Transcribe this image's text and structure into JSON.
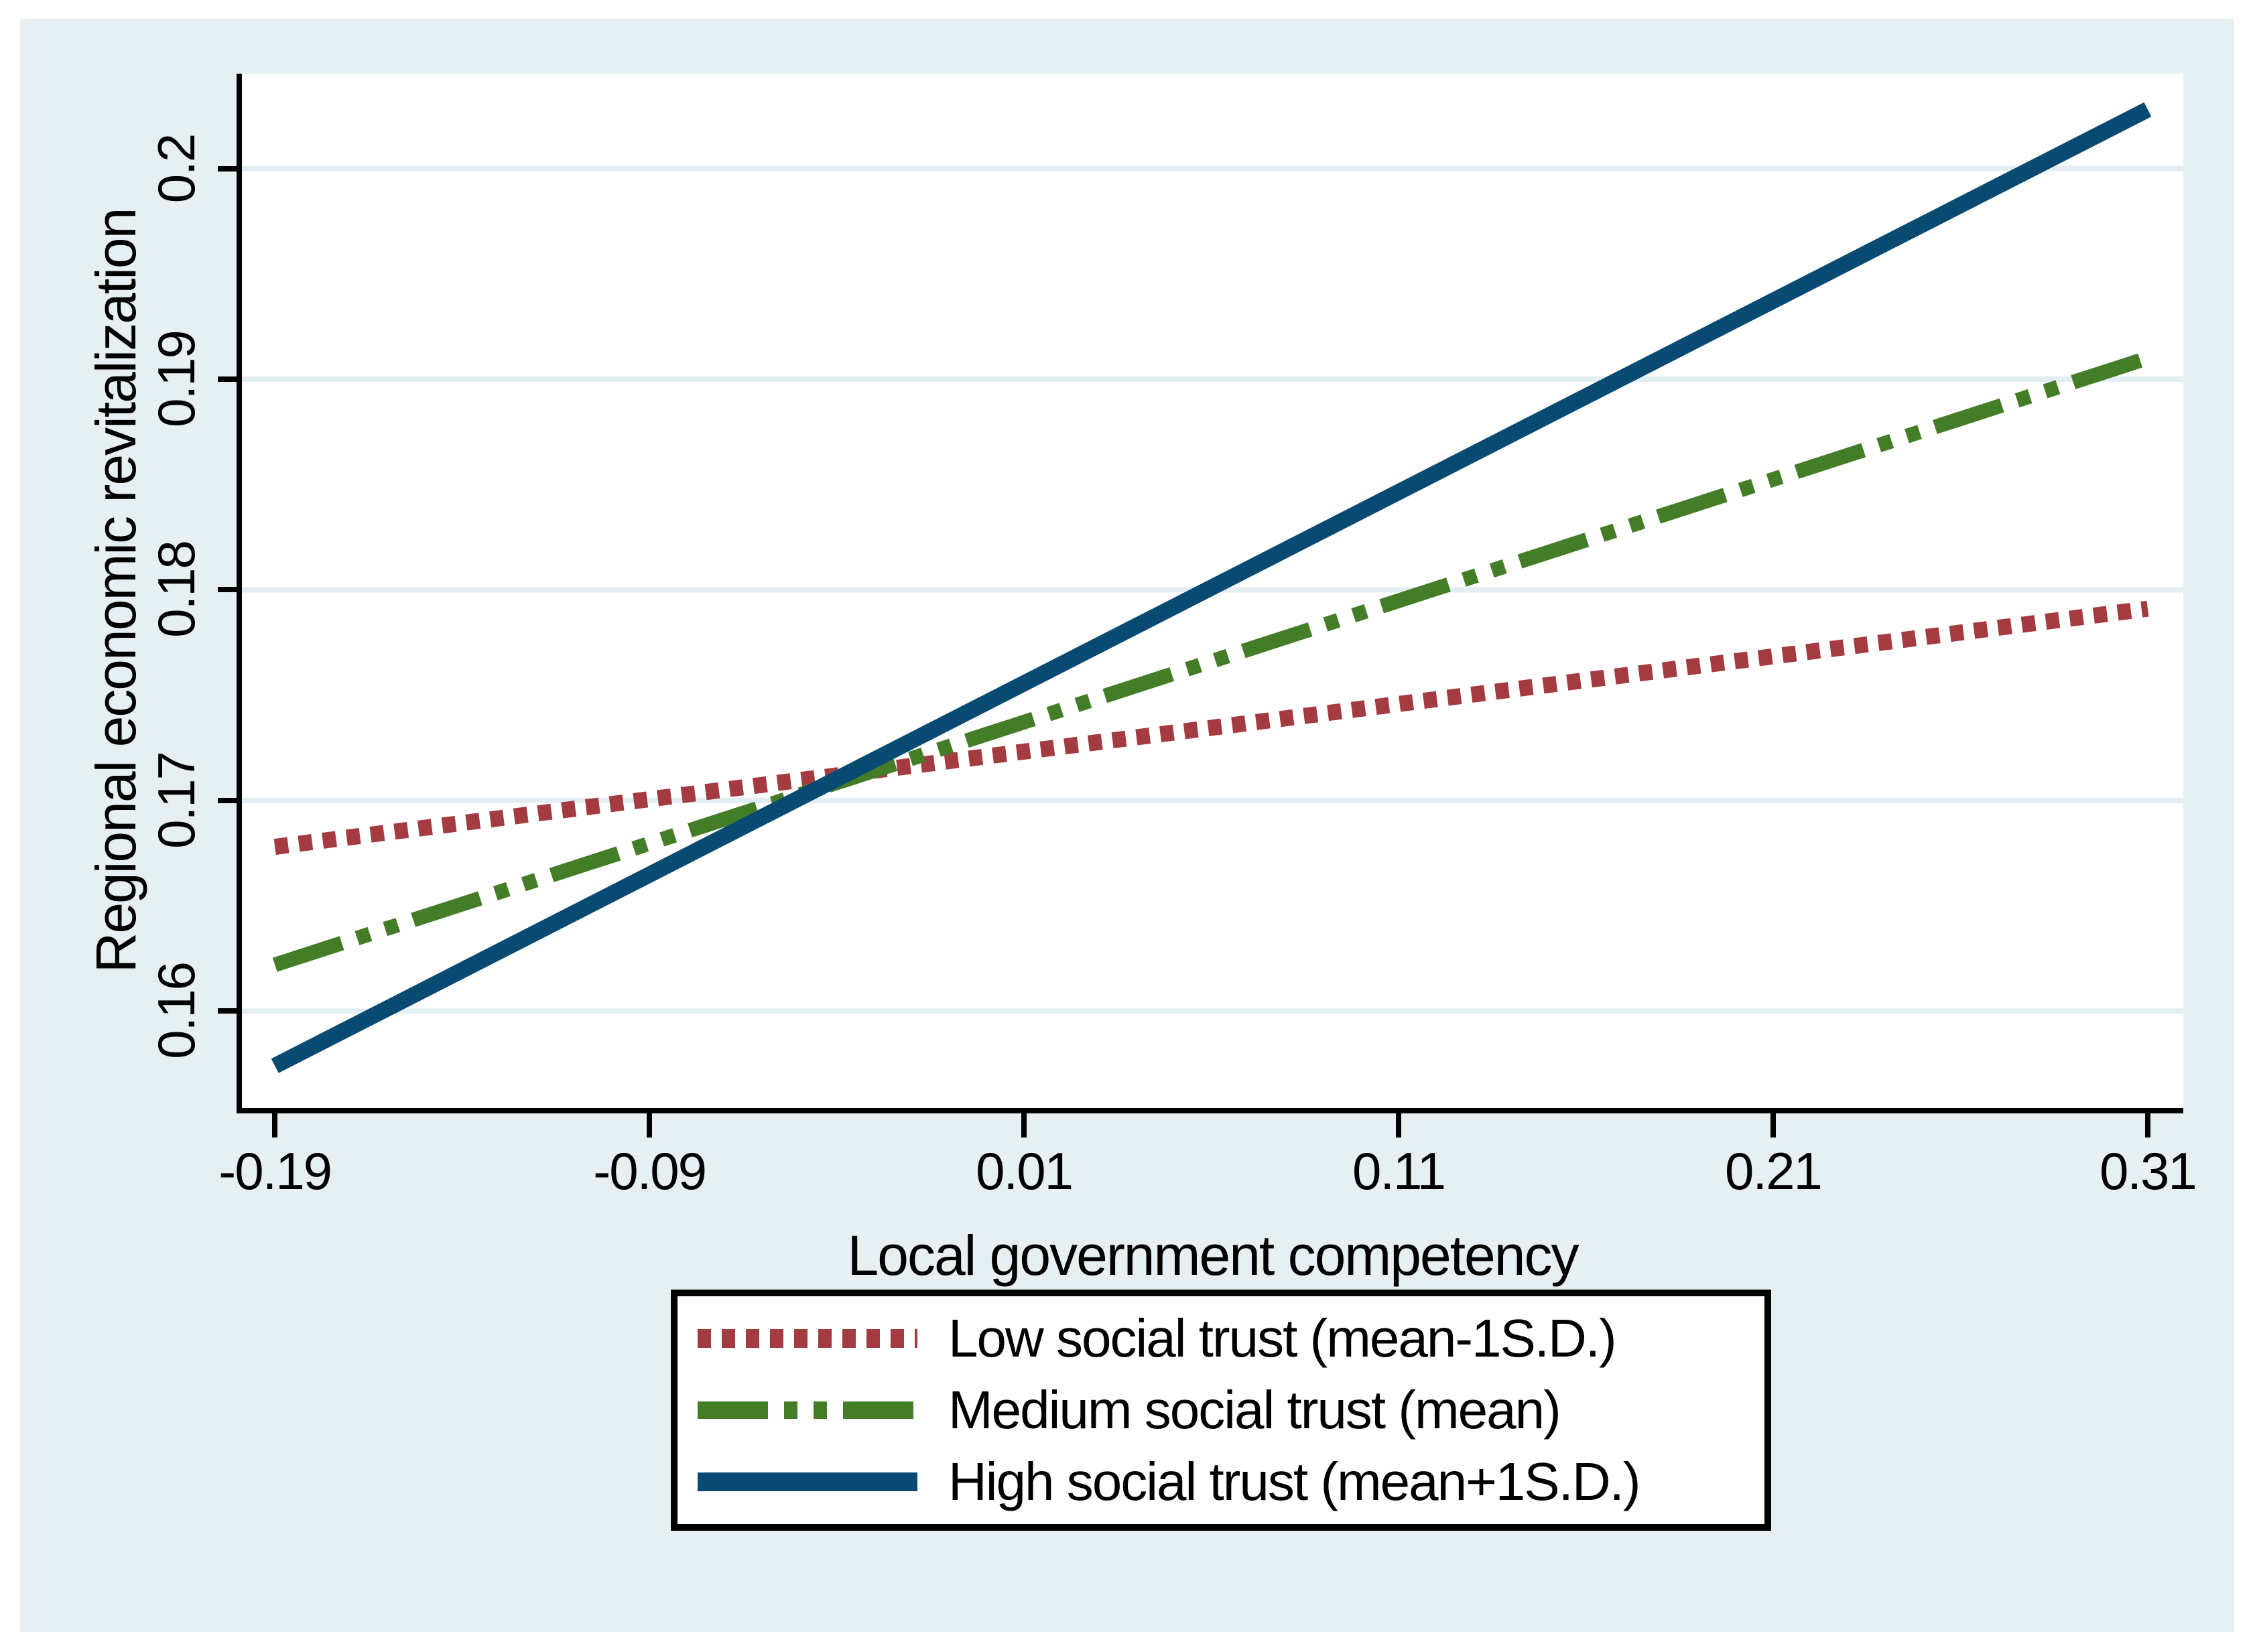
{
  "chart_data": {
    "type": "line",
    "title": "",
    "xlabel": "Local government competency",
    "ylabel": "Regional economic revitalization",
    "x_ticks": [
      -0.19,
      -0.09,
      0.01,
      0.11,
      0.21,
      0.31
    ],
    "x_tick_labels": [
      "-0.19",
      "-0.09",
      "0.01",
      "0.11",
      "0.21",
      "0.31"
    ],
    "y_ticks": [
      0.16,
      0.17,
      0.18,
      0.19,
      0.2
    ],
    "y_tick_labels": [
      "0.16",
      "0.17",
      "0.18",
      "0.19",
      "0.2"
    ],
    "x_axis_range": [
      -0.1988,
      0.3195
    ],
    "y_axis_range": [
      0.1554,
      0.2045
    ],
    "grid": "horizontal-only",
    "legend_position": "bottom-center",
    "series": [
      {
        "name": "low-social-trust",
        "label": "Low social trust (mean-1S.D.)",
        "style": "dotted",
        "color": "#a43b40",
        "width": 24,
        "dash": "20 16",
        "x": [
          -0.19,
          0.31
        ],
        "y": [
          0.1678,
          0.1791
        ]
      },
      {
        "name": "medium-social-trust",
        "label": "Medium social trust (mean)",
        "style": "dash-dot-dot",
        "color": "#447d28",
        "width": 22,
        "dash": "105 24 20 24 20 24",
        "x": [
          -0.19,
          0.31
        ],
        "y": [
          0.1622,
          0.191
        ]
      },
      {
        "name": "high-social-trust",
        "label": "High social trust (mean+1S.D.)",
        "style": "solid",
        "color": "#084a72",
        "width": 24,
        "dash": "",
        "x": [
          -0.19,
          0.31
        ],
        "y": [
          0.1574,
          0.2028
        ]
      }
    ]
  },
  "colors": {
    "page_background": "#ffffff",
    "figure_background": "#e6f0f2",
    "plot_background": "#ffffff",
    "gridline": "#e2eef1",
    "axis": "#000000",
    "text": "#000000",
    "legend_background": "#ffffff",
    "legend_border": "#000000"
  }
}
